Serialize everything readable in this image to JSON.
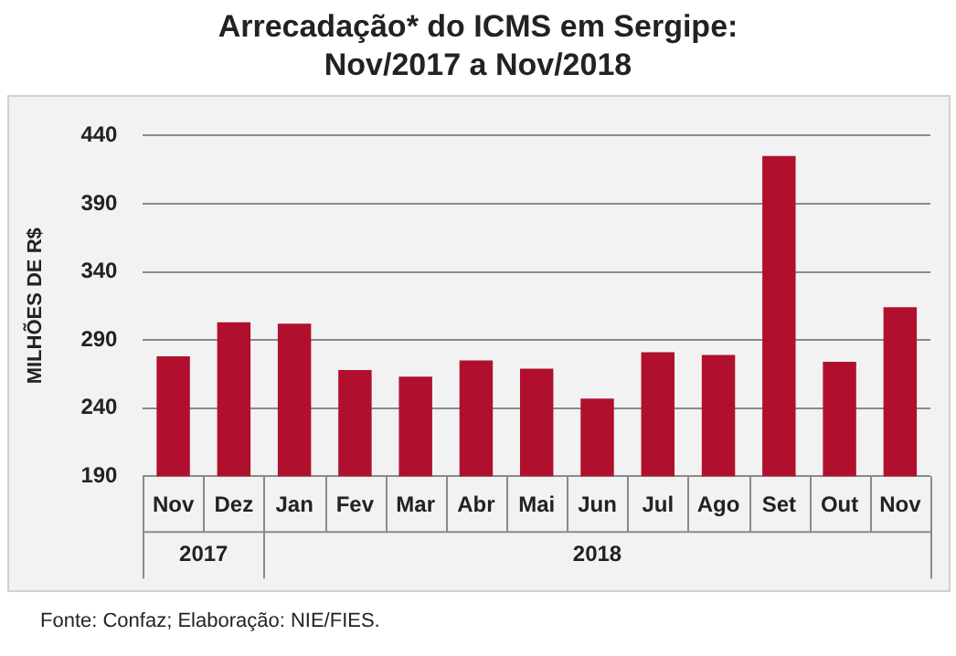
{
  "chart_data": {
    "type": "bar",
    "title": "Arrecadação*  do ICMS em Sergipe: Nov/2017 a Nov/2018",
    "ylabel": "MILHÕES DE R$",
    "categories": [
      "Nov",
      "Dez",
      "Jan",
      "Fev",
      "Mar",
      "Abr",
      "Mai",
      "Jun",
      "Jul",
      "Ago",
      "Set",
      "Out",
      "Nov"
    ],
    "values": [
      278,
      303,
      302,
      268,
      263,
      275,
      269,
      247,
      281,
      279,
      425,
      274,
      314
    ],
    "color": "#b0102e",
    "ylim": [
      190,
      440
    ],
    "yticks": [
      190,
      240,
      290,
      340,
      390,
      440
    ],
    "grid": "y",
    "legend": false,
    "annotations": [
      "2017",
      "2018",
      "Fonte: Confaz; Elaboração: NIE/FIES."
    ]
  }
}
